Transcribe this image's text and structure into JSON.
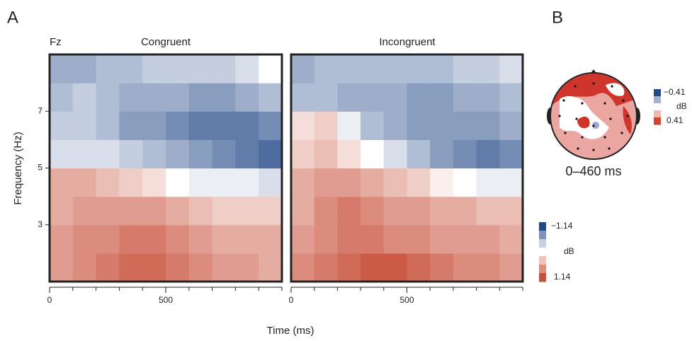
{
  "panel_labels": [
    "A",
    "B"
  ],
  "chart_data": [
    {
      "type": "heatmap",
      "title": "Congruent",
      "channel": "Fz",
      "xlabel": "Time (ms)",
      "ylabel": "Frequency (Hz)",
      "xlim": [
        0,
        1000
      ],
      "ylim": [
        1,
        9
      ],
      "xticks": [
        0,
        500
      ],
      "xminor": [
        0,
        100,
        200,
        300,
        400,
        500,
        600,
        700,
        800,
        900,
        1000
      ],
      "yticks": [
        3,
        5,
        7
      ],
      "xbins": [
        0,
        100,
        200,
        300,
        400,
        500,
        600,
        700,
        800,
        900,
        1000
      ],
      "ybins": [
        1,
        2,
        3,
        4,
        5,
        6,
        7,
        8,
        9
      ],
      "clim": [
        -1.14,
        1.14
      ],
      "z": [
        [
          0.6,
          0.7,
          0.8,
          0.9,
          0.9,
          0.8,
          0.7,
          0.6,
          0.6,
          0.5
        ],
        [
          0.6,
          0.7,
          0.7,
          0.8,
          0.8,
          0.7,
          0.6,
          0.5,
          0.5,
          0.5
        ],
        [
          0.5,
          0.6,
          0.6,
          0.6,
          0.6,
          0.5,
          0.4,
          0.3,
          0.3,
          0.3
        ],
        [
          0.5,
          0.5,
          0.4,
          0.3,
          0.2,
          0.0,
          -0.1,
          -0.1,
          -0.1,
          -0.2
        ],
        [
          -0.2,
          -0.2,
          -0.2,
          -0.3,
          -0.4,
          -0.5,
          -0.6,
          -0.7,
          -0.8,
          -0.9
        ],
        [
          -0.3,
          -0.3,
          -0.4,
          -0.6,
          -0.6,
          -0.7,
          -0.8,
          -0.8,
          -0.8,
          -0.7
        ],
        [
          -0.4,
          -0.3,
          -0.4,
          -0.5,
          -0.5,
          -0.5,
          -0.6,
          -0.6,
          -0.5,
          -0.4
        ],
        [
          -0.5,
          -0.5,
          -0.4,
          -0.4,
          -0.3,
          -0.3,
          -0.3,
          -0.3,
          -0.2,
          0.0
        ]
      ]
    },
    {
      "type": "heatmap",
      "title": "Incongruent",
      "xlim": [
        0,
        1000
      ],
      "ylim": [
        1,
        9
      ],
      "xticks": [
        0,
        500
      ],
      "xminor": [
        0,
        100,
        200,
        300,
        400,
        500,
        600,
        700,
        800,
        900,
        1000
      ],
      "xbins": [
        0,
        100,
        200,
        300,
        400,
        500,
        600,
        700,
        800,
        900,
        1000
      ],
      "ybins": [
        1,
        2,
        3,
        4,
        5,
        6,
        7,
        8,
        9
      ],
      "clim": [
        -1.14,
        1.14
      ],
      "z": [
        [
          0.7,
          0.8,
          0.9,
          1.0,
          1.0,
          0.9,
          0.8,
          0.7,
          0.7,
          0.6
        ],
        [
          0.6,
          0.7,
          0.8,
          0.8,
          0.7,
          0.7,
          0.6,
          0.6,
          0.6,
          0.5
        ],
        [
          0.5,
          0.7,
          0.8,
          0.7,
          0.6,
          0.6,
          0.5,
          0.5,
          0.4,
          0.4
        ],
        [
          0.5,
          0.6,
          0.6,
          0.5,
          0.4,
          0.3,
          0.1,
          0.0,
          -0.1,
          -0.1
        ],
        [
          0.3,
          0.4,
          0.2,
          0.0,
          -0.2,
          -0.4,
          -0.6,
          -0.7,
          -0.8,
          -0.7
        ],
        [
          0.2,
          0.3,
          -0.1,
          -0.4,
          -0.5,
          -0.6,
          -0.6,
          -0.6,
          -0.6,
          -0.5
        ],
        [
          -0.4,
          -0.4,
          -0.5,
          -0.5,
          -0.5,
          -0.6,
          -0.6,
          -0.5,
          -0.5,
          -0.4
        ],
        [
          -0.5,
          -0.4,
          -0.4,
          -0.4,
          -0.4,
          -0.4,
          -0.4,
          -0.3,
          -0.3,
          -0.2
        ]
      ],
      "colorbar": {
        "label": "dB",
        "colors": [
          "#234a86",
          "#7f92bd",
          "#c7cfe3",
          "#ffffff",
          "#efc4bb",
          "#e08d7b",
          "#c9503a"
        ],
        "ticks": [
          {
            "value": -1.14,
            "label": "−1.14"
          },
          1.14
        ]
      }
    },
    {
      "type": "topomap",
      "title": "0–460 ms",
      "colorbar": {
        "label": "dB",
        "colors": [
          "#234a86",
          "#a5b1d3",
          "#ffffff",
          "#efb8b3",
          "#d0452f"
        ],
        "ticks": [
          {
            "value": -0.41,
            "label": "−0.41"
          },
          0.41
        ]
      }
    }
  ]
}
